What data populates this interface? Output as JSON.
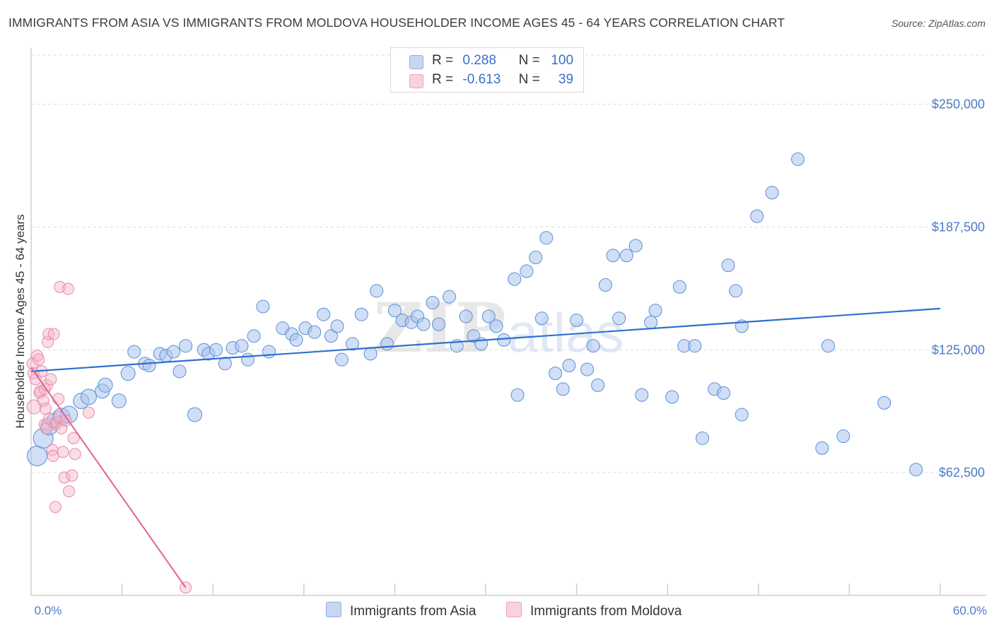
{
  "title": "IMMIGRANTS FROM ASIA VS IMMIGRANTS FROM MOLDOVA HOUSEHOLDER INCOME AGES 45 - 64 YEARS CORRELATION CHART",
  "source": "Source: ZipAtlas.com",
  "watermark": {
    "zip": "ZIP",
    "atlas": "atlas"
  },
  "legend": {
    "rows": [
      {
        "r_label": "R =",
        "r_value": "0.288",
        "n_label": "N =",
        "n_value": "100",
        "color": "#a9c4ee"
      },
      {
        "r_label": "R =",
        "r_value": "-0.613",
        "n_label": "N =",
        "n_value": "39",
        "color": "#f5b3c8"
      }
    ]
  },
  "bottom_legend": [
    {
      "label": "Immigrants from Asia",
      "color": "#a9c4ee"
    },
    {
      "label": "Immigrants from Moldova",
      "color": "#f5b3c8"
    }
  ],
  "chart_data": {
    "type": "scatter",
    "title": "IMMIGRANTS FROM ASIA VS IMMIGRANTS FROM MOLDOVA HOUSEHOLDER INCOME AGES 45 - 64 YEARS CORRELATION CHART",
    "xlabel": "",
    "ylabel": "Householder Income Ages 45 - 64 years",
    "xlim": [
      0,
      60
    ],
    "ylim": [
      0,
      275000
    ],
    "x_tick_labels": [
      "0.0%",
      "60.0%"
    ],
    "y_ticks": [
      62500,
      125000,
      187500,
      250000
    ],
    "y_tick_labels": [
      "$62,500",
      "$125,000",
      "$187,500",
      "$250,000"
    ],
    "grid": true,
    "series": [
      {
        "name": "Immigrants from Asia",
        "color": "#a9c4ee",
        "stroke": "#5b8ed6",
        "trend": [
          [
            0,
            114000
          ],
          [
            60,
            146000
          ]
        ],
        "points": [
          [
            0.4,
            71000,
            14
          ],
          [
            0.8,
            80000,
            14
          ],
          [
            1.2,
            86000,
            12
          ],
          [
            1.5,
            89000,
            10
          ],
          [
            2.0,
            91000,
            12
          ],
          [
            2.5,
            92000,
            12
          ],
          [
            3.3,
            99000,
            11
          ],
          [
            3.8,
            101000,
            11
          ],
          [
            4.7,
            104000,
            10
          ],
          [
            4.9,
            107000,
            10
          ],
          [
            5.8,
            99000,
            10
          ],
          [
            6.4,
            113000,
            10
          ],
          [
            6.8,
            124000,
            9
          ],
          [
            7.5,
            118000,
            9
          ],
          [
            7.8,
            117000,
            9
          ],
          [
            8.5,
            123000,
            9
          ],
          [
            8.9,
            122000,
            9
          ],
          [
            9.4,
            124000,
            9
          ],
          [
            9.8,
            114000,
            9
          ],
          [
            10.2,
            127000,
            9
          ],
          [
            10.8,
            92000,
            10
          ],
          [
            11.4,
            125000,
            9
          ],
          [
            11.7,
            123000,
            9
          ],
          [
            12.2,
            125000,
            9
          ],
          [
            12.8,
            118000,
            9
          ],
          [
            13.3,
            126000,
            9
          ],
          [
            13.9,
            127000,
            9
          ],
          [
            14.3,
            120000,
            9
          ],
          [
            14.7,
            132000,
            9
          ],
          [
            15.3,
            147000,
            9
          ],
          [
            15.7,
            124000,
            9
          ],
          [
            16.6,
            136000,
            9
          ],
          [
            17.2,
            133000,
            9
          ],
          [
            17.5,
            130000,
            9
          ],
          [
            18.1,
            136000,
            9
          ],
          [
            18.7,
            134000,
            9
          ],
          [
            19.3,
            143000,
            9
          ],
          [
            19.8,
            132000,
            9
          ],
          [
            20.2,
            137000,
            9
          ],
          [
            20.5,
            120000,
            9
          ],
          [
            21.2,
            128000,
            9
          ],
          [
            21.8,
            143000,
            9
          ],
          [
            22.4,
            123000,
            9
          ],
          [
            22.8,
            155000,
            9
          ],
          [
            23.5,
            128000,
            9
          ],
          [
            24.0,
            145000,
            9
          ],
          [
            24.5,
            140000,
            9
          ],
          [
            25.1,
            139000,
            9
          ],
          [
            25.5,
            142000,
            9
          ],
          [
            25.9,
            138000,
            9
          ],
          [
            26.5,
            149000,
            9
          ],
          [
            26.9,
            138000,
            9
          ],
          [
            27.6,
            152000,
            9
          ],
          [
            28.1,
            127000,
            9
          ],
          [
            28.7,
            142000,
            9
          ],
          [
            29.2,
            132000,
            9
          ],
          [
            29.7,
            128000,
            9
          ],
          [
            30.2,
            142000,
            9
          ],
          [
            30.7,
            137000,
            9
          ],
          [
            31.2,
            130000,
            9
          ],
          [
            31.9,
            161000,
            9
          ],
          [
            32.1,
            102000,
            9
          ],
          [
            32.7,
            165000,
            9
          ],
          [
            33.3,
            172000,
            9
          ],
          [
            33.7,
            141000,
            9
          ],
          [
            34.0,
            182000,
            9
          ],
          [
            34.6,
            113000,
            9
          ],
          [
            35.1,
            105000,
            9
          ],
          [
            35.5,
            117000,
            9
          ],
          [
            36.0,
            140000,
            9
          ],
          [
            36.7,
            115000,
            9
          ],
          [
            37.1,
            127000,
            9
          ],
          [
            37.4,
            107000,
            9
          ],
          [
            37.9,
            158000,
            9
          ],
          [
            38.4,
            173000,
            9
          ],
          [
            38.8,
            141000,
            9
          ],
          [
            39.3,
            173000,
            9
          ],
          [
            39.9,
            178000,
            9
          ],
          [
            40.3,
            102000,
            9
          ],
          [
            40.9,
            139000,
            9
          ],
          [
            41.2,
            145000,
            9
          ],
          [
            42.3,
            101000,
            9
          ],
          [
            42.8,
            157000,
            9
          ],
          [
            43.1,
            127000,
            9
          ],
          [
            43.8,
            127000,
            9
          ],
          [
            44.3,
            80000,
            9
          ],
          [
            45.1,
            105000,
            9
          ],
          [
            45.7,
            103000,
            9
          ],
          [
            46.0,
            168000,
            9
          ],
          [
            46.5,
            155000,
            9
          ],
          [
            46.9,
            137000,
            9
          ],
          [
            46.9,
            92000,
            9
          ],
          [
            47.9,
            193000,
            9
          ],
          [
            48.9,
            205000,
            9
          ],
          [
            50.6,
            222000,
            9
          ],
          [
            52.2,
            75000,
            9
          ],
          [
            52.6,
            127000,
            9
          ],
          [
            53.6,
            81000,
            9
          ],
          [
            56.3,
            98000,
            9
          ],
          [
            58.4,
            64000,
            9
          ]
        ]
      },
      {
        "name": "Immigrants from Moldova",
        "color": "#f5b3c8",
        "stroke": "#e88aa8",
        "trend": [
          [
            0,
            116000
          ],
          [
            10.2,
            4000
          ]
        ],
        "points": [
          [
            0.1,
            118000,
            8
          ],
          [
            0.15,
            113000,
            8
          ],
          [
            0.2,
            96000,
            10
          ],
          [
            0.3,
            110000,
            8
          ],
          [
            0.4,
            122000,
            8
          ],
          [
            0.5,
            120000,
            8
          ],
          [
            0.55,
            103000,
            8
          ],
          [
            0.6,
            104000,
            8
          ],
          [
            0.7,
            114000,
            8
          ],
          [
            0.8,
            99000,
            8
          ],
          [
            0.9,
            105000,
            8
          ],
          [
            0.9,
            87000,
            8
          ],
          [
            0.95,
            95000,
            8
          ],
          [
            1.0,
            85000,
            8
          ],
          [
            1.05,
            107000,
            8
          ],
          [
            1.1,
            129000,
            8
          ],
          [
            1.15,
            133000,
            8
          ],
          [
            1.2,
            90000,
            8
          ],
          [
            1.3,
            110000,
            8
          ],
          [
            1.4,
            74000,
            8
          ],
          [
            1.45,
            71000,
            8
          ],
          [
            1.5,
            133000,
            8
          ],
          [
            1.6,
            45000,
            8
          ],
          [
            1.6,
            87000,
            8
          ],
          [
            1.7,
            88000,
            8
          ],
          [
            1.8,
            100000,
            8
          ],
          [
            1.85,
            91000,
            8
          ],
          [
            1.9,
            157000,
            8
          ],
          [
            2.0,
            85000,
            8
          ],
          [
            2.1,
            73000,
            8
          ],
          [
            2.2,
            60000,
            8
          ],
          [
            2.3,
            89000,
            8
          ],
          [
            2.45,
            156000,
            8
          ],
          [
            2.5,
            53000,
            8
          ],
          [
            2.7,
            61000,
            8
          ],
          [
            2.8,
            80000,
            8
          ],
          [
            2.9,
            72000,
            8
          ],
          [
            3.8,
            93000,
            8
          ],
          [
            10.2,
            4000,
            8
          ]
        ]
      }
    ]
  }
}
